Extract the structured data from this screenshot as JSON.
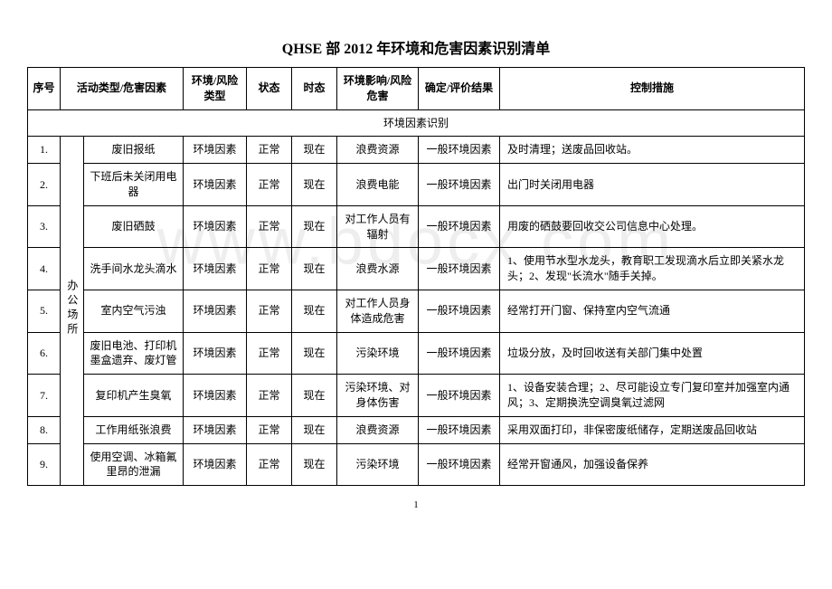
{
  "title": "QHSE 部 2012 年环境和危害因素识别清单",
  "watermark": "www.bdocx.com",
  "headers": {
    "seq": "序号",
    "activity": "活动类型/危害因素",
    "type": "环境/风险类型",
    "state": "状态",
    "time": "时态",
    "impact": "环境影响/风险危害",
    "result": "确定/评价结果",
    "measure": "控制措施"
  },
  "section_label": "环境因素识别",
  "location_label": "办公场所",
  "rows": [
    {
      "seq": "1.",
      "activity": "废旧报纸",
      "type": "环境因素",
      "state": "正常",
      "time": "现在",
      "impact": "浪费资源",
      "result": "一般环境因素",
      "measure": "及时清理；送废品回收站。"
    },
    {
      "seq": "2.",
      "activity": "下班后未关闭用电器",
      "type": "环境因素",
      "state": "正常",
      "time": "现在",
      "impact": "浪费电能",
      "result": "一般环境因素",
      "measure": "出门时关闭用电器"
    },
    {
      "seq": "3.",
      "activity": "废旧硒鼓",
      "type": "环境因素",
      "state": "正常",
      "time": "现在",
      "impact": "对工作人员有辐射",
      "result": "一般环境因素",
      "measure": "用废的硒鼓要回收交公司信息中心处理。"
    },
    {
      "seq": "4.",
      "activity": "洗手间水龙头滴水",
      "type": "环境因素",
      "state": "正常",
      "time": "现在",
      "impact": "浪费水源",
      "result": "一般环境因素",
      "measure": "1、使用节水型水龙头，教育职工发现滴水后立即关紧水龙头；2、发现\"长流水\"随手关掉。"
    },
    {
      "seq": "5.",
      "activity": "室内空气污浊",
      "type": "环境因素",
      "state": "正常",
      "time": "现在",
      "impact": "对工作人员身体造成危害",
      "result": "一般环境因素",
      "measure": "经常打开门窗、保持室内空气流通"
    },
    {
      "seq": "6.",
      "activity": "废旧电池、打印机墨盒遗弃、废灯管",
      "type": "环境因素",
      "state": "正常",
      "time": "现在",
      "impact": "污染环境",
      "result": "一般环境因素",
      "measure": "垃圾分放，及时回收送有关部门集中处置"
    },
    {
      "seq": "7.",
      "activity": "复印机产生臭氧",
      "type": "环境因素",
      "state": "正常",
      "time": "现在",
      "impact": "污染环境、对身体伤害",
      "result": "一般环境因素",
      "measure": "1、设备安装合理；2、尽可能设立专门复印室并加强室内通风；3、定期换洗空调臭氧过滤网"
    },
    {
      "seq": "8.",
      "activity": "工作用纸张浪费",
      "type": "环境因素",
      "state": "正常",
      "time": "现在",
      "impact": "浪费资源",
      "result": "一般环境因素",
      "measure": "采用双面打印，非保密废纸储存，定期送废品回收站"
    },
    {
      "seq": "9.",
      "activity": "使用空调、冰箱氟里昂的泄漏",
      "type": "环境因素",
      "state": "正常",
      "time": "现在",
      "impact": "污染环境",
      "result": "一般环境因素",
      "measure": "经常开窗通风，加强设备保养"
    }
  ],
  "page_number": "1"
}
